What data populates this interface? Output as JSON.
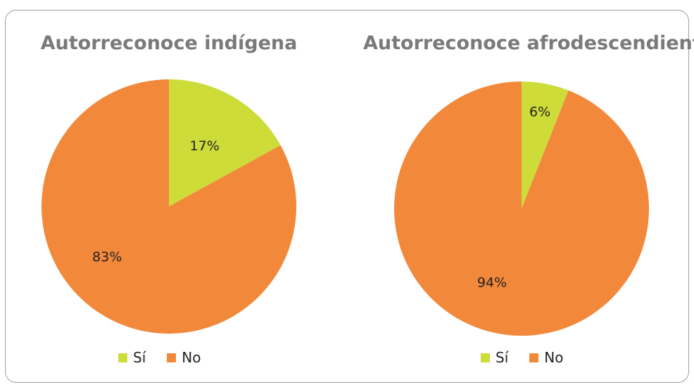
{
  "colors": {
    "si": "#cddc39",
    "no": "#f2883a"
  },
  "chart_data": [
    {
      "type": "pie",
      "title": "Autorreconoce indígena",
      "labels": [
        "Sí",
        "No"
      ],
      "values": [
        17,
        83
      ],
      "data_labels": [
        "17%",
        "83%"
      ],
      "colors": [
        "#cddc39",
        "#f2883a"
      ],
      "legend_position": "bottom"
    },
    {
      "type": "pie",
      "title": "Autorreconoce afrodescendiente",
      "labels": [
        "Sí",
        "No"
      ],
      "values": [
        6,
        94
      ],
      "data_labels": [
        "6%",
        "94%"
      ],
      "colors": [
        "#cddc39",
        "#f2883a"
      ],
      "legend_position": "bottom"
    }
  ]
}
